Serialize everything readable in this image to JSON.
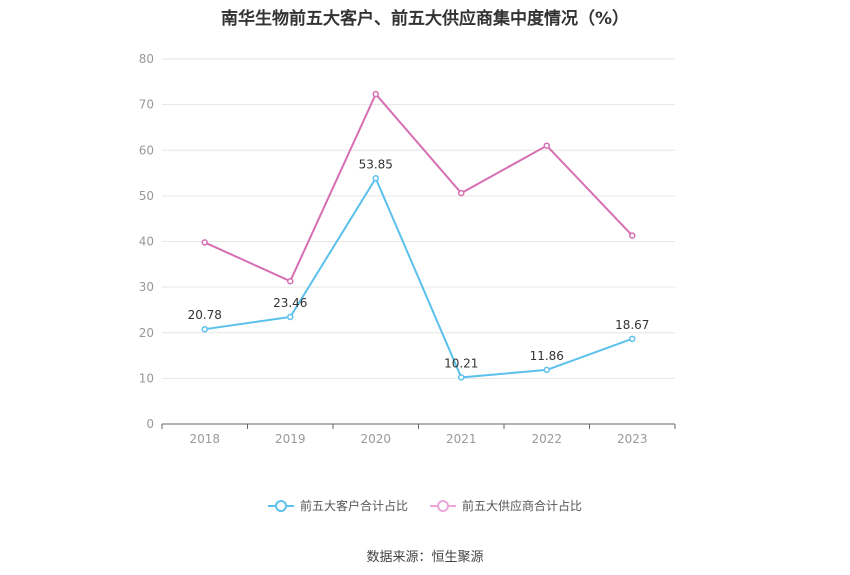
{
  "title": "南华生物前五大客户、前五大供应商集中度情况（%）",
  "source": "数据来源：恒生聚源",
  "colors": {
    "series1": "#5bc0eb",
    "series2": "#d66eb4",
    "grid": "#e6e6e6",
    "axis": "#666666",
    "tick_text": "#999999",
    "label_text": "#333333"
  },
  "chart_data": {
    "type": "line",
    "title": "南华生物前五大客户、前五大供应商集中度情况（%）",
    "categories": [
      "2018",
      "2019",
      "2020",
      "2021",
      "2022",
      "2023"
    ],
    "series": [
      {
        "name": "前五大客户合计占比",
        "values": [
          20.78,
          23.46,
          53.85,
          10.21,
          11.86,
          18.67
        ],
        "show_labels": true
      },
      {
        "name": "前五大供应商合计占比",
        "values": [
          39.8,
          31.3,
          72.3,
          50.6,
          61.0,
          41.3
        ],
        "show_labels": false
      }
    ],
    "yticks": [
      "0",
      "10",
      "20",
      "30",
      "40",
      "50",
      "60",
      "70",
      "80"
    ],
    "ylim": [
      0,
      80
    ],
    "grid": true,
    "legend_position": "bottom"
  }
}
